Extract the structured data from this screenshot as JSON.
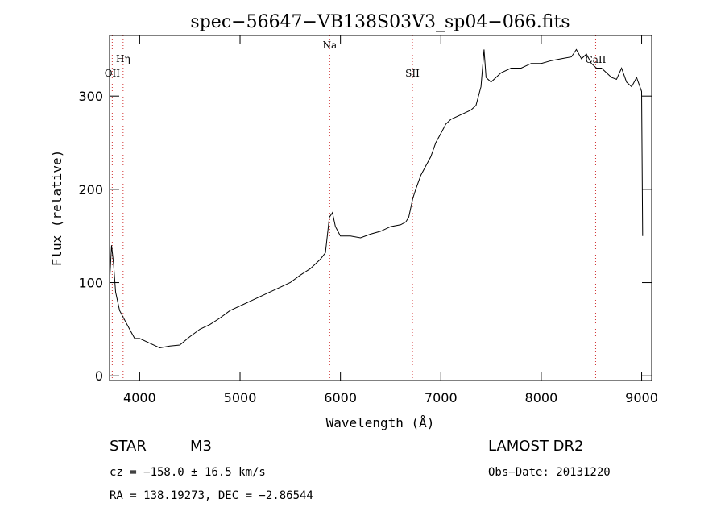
{
  "chart_data": {
    "type": "line",
    "title": "spec−56647−VB138S03V3_sp04−066.fits",
    "xlabel": "Wavelength (Å)",
    "ylabel": "Flux (relative)",
    "xlim": [
      3700,
      9100
    ],
    "ylim": [
      -5,
      365
    ],
    "xticks": [
      4000,
      5000,
      6000,
      7000,
      8000,
      9000
    ],
    "yticks": [
      0,
      100,
      200,
      300
    ],
    "grid": false,
    "line_color": "#000000",
    "marker_color": "#d03030",
    "spectral_lines": [
      {
        "label": "OII",
        "x": 3727
      },
      {
        "label": "Hη",
        "x": 3835
      },
      {
        "label": "Na",
        "x": 5893
      },
      {
        "label": "SII",
        "x": 6717
      },
      {
        "label": "CaII",
        "x": 8542
      }
    ],
    "series": [
      {
        "x": [
          3700,
          3720,
          3740,
          3760,
          3780,
          3800,
          3850,
          3900,
          3950,
          4000,
          4100,
          4200,
          4300,
          4400,
          4500,
          4600,
          4700,
          4800,
          4900,
          5000,
          5100,
          5200,
          5300,
          5400,
          5500,
          5600,
          5700,
          5800,
          5850,
          5890,
          5920,
          5950,
          6000,
          6100,
          6200,
          6300,
          6400,
          6500,
          6600,
          6650,
          6680,
          6700,
          6720,
          6750,
          6800,
          6850,
          6900,
          6950,
          7000,
          7050,
          7100,
          7200,
          7300,
          7350,
          7400,
          7430,
          7450,
          7500,
          7600,
          7700,
          7800,
          7900,
          8000,
          8100,
          8200,
          8300,
          8350,
          8400,
          8450,
          8500,
          8550,
          8600,
          8650,
          8700,
          8750,
          8800,
          8850,
          8900,
          8950,
          9000,
          9010
        ],
        "values": [
          100,
          140,
          120,
          90,
          80,
          70,
          60,
          50,
          40,
          40,
          35,
          30,
          32,
          33,
          42,
          50,
          55,
          62,
          70,
          75,
          80,
          85,
          90,
          95,
          100,
          108,
          115,
          125,
          132,
          170,
          175,
          160,
          150,
          150,
          148,
          152,
          155,
          160,
          162,
          165,
          170,
          180,
          190,
          200,
          215,
          225,
          235,
          250,
          260,
          270,
          275,
          280,
          285,
          290,
          310,
          350,
          320,
          315,
          325,
          330,
          330,
          335,
          335,
          338,
          340,
          342,
          350,
          340,
          345,
          335,
          330,
          330,
          325,
          320,
          318,
          330,
          315,
          310,
          320,
          305,
          150
        ]
      }
    ]
  },
  "info": {
    "object_type": "STAR",
    "subclass": "M3",
    "survey": "LAMOST DR2",
    "cz": "cz = −158.0 ± 16.5 km/s",
    "obs_date": "Obs−Date: 20131220",
    "coords": "RA = 138.19273, DEC =  −2.86544"
  }
}
